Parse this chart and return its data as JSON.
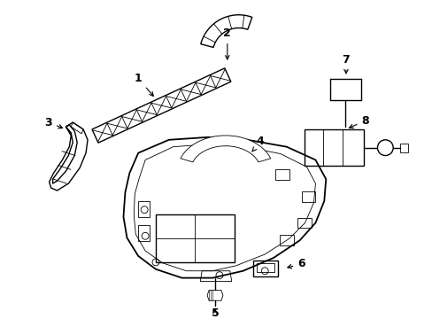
{
  "background_color": "#ffffff",
  "line_color": "#000000",
  "lw": 1.0,
  "tlw": 0.6,
  "figsize": [
    4.89,
    3.6
  ],
  "dpi": 100,
  "xlim": [
    0,
    489
  ],
  "ylim": [
    0,
    360
  ]
}
